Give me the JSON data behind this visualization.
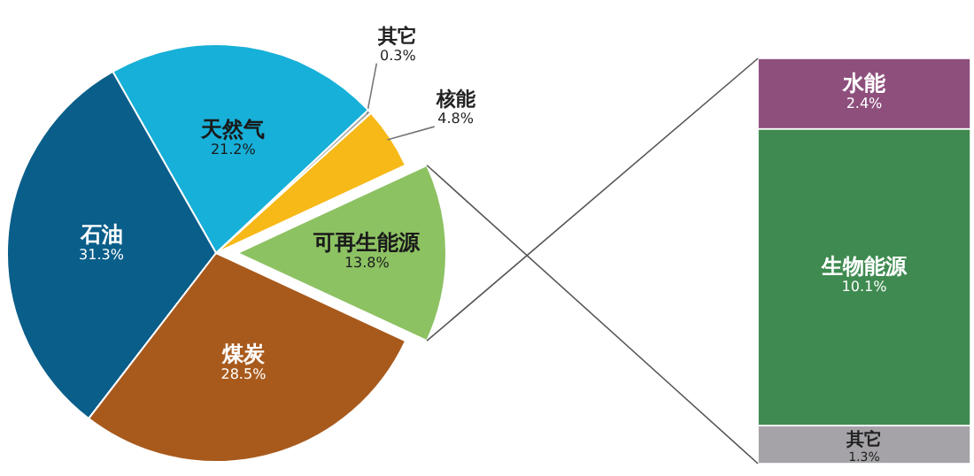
{
  "chart_data": [
    {
      "type": "pie",
      "categories": [
        "可再生能源",
        "核能",
        "其它",
        "天然气",
        "石油",
        "煤炭"
      ],
      "values": [
        13.8,
        4.8,
        0.3,
        21.2,
        31.3,
        28.5
      ],
      "colors": [
        "#8dc263",
        "#f7b918",
        "#a9a9a9",
        "#17b0d8",
        "#0a5e8a",
        "#a85a1c"
      ],
      "value_labels": [
        "13.8%",
        "4.8%",
        "0.3%",
        "21.2%",
        "31.3%",
        "28.5%"
      ]
    },
    {
      "type": "bar",
      "stacked": true,
      "categories": [
        null
      ],
      "series": [
        {
          "name": "其它",
          "color": "#a5a3a8",
          "values": [
            1.3
          ],
          "value_labels": [
            "1.3%"
          ]
        },
        {
          "name": "生物能源",
          "color": "#3f8a50",
          "values": [
            10.1
          ],
          "value_labels": [
            "10.1%"
          ]
        },
        {
          "name": "水能",
          "color": "#8e4f7d",
          "values": [
            2.4
          ],
          "value_labels": [
            "2.4%"
          ]
        }
      ]
    }
  ]
}
